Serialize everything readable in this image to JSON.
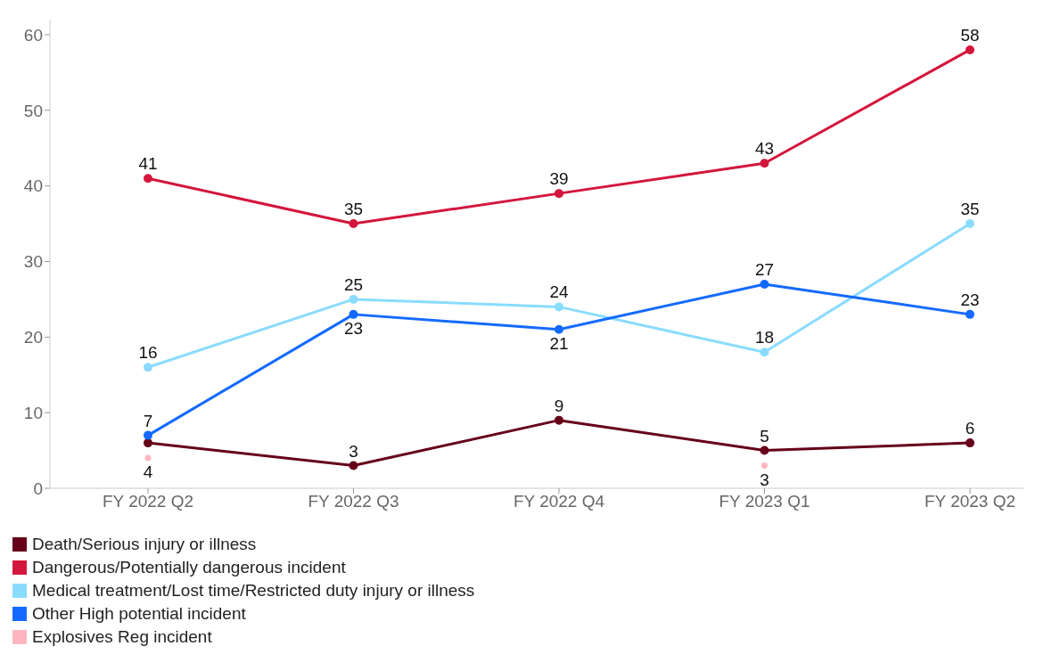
{
  "chart_data": {
    "type": "line",
    "categories": [
      "FY 2022 Q2",
      "FY 2022 Q3",
      "FY 2022 Q4",
      "FY 2023 Q1",
      "FY 2023 Q2"
    ],
    "ylim": [
      0,
      62
    ],
    "yticks": [
      0,
      10,
      20,
      30,
      40,
      50,
      60
    ],
    "grid": false,
    "legend": "bottom left",
    "marker": "circle",
    "line_style": "solid",
    "series": [
      {
        "name": "Death/Serious injury or illness",
        "color": "#660019",
        "values": [
          6,
          3,
          9,
          5,
          6
        ],
        "value_labels": [
          null,
          "3",
          "9",
          "5",
          "6"
        ]
      },
      {
        "name": "Dangerous/Potentially dangerous incident",
        "color": "#d4163c",
        "values": [
          41,
          35,
          39,
          43,
          58
        ],
        "value_labels": [
          "41",
          "35",
          "39",
          "43",
          "58"
        ]
      },
      {
        "name": "Medical treatment/Lost time/Restricted duty injury or illness",
        "color": "#8adcff",
        "values": [
          16,
          25,
          24,
          18,
          35
        ],
        "value_labels": [
          "16",
          "25",
          "24",
          "18",
          "35"
        ]
      },
      {
        "name": "Other High potential incident",
        "color": "#146aff",
        "values": [
          7,
          23,
          21,
          27,
          23
        ],
        "value_labels": [
          "7",
          "23",
          "21",
          "27",
          "23"
        ]
      },
      {
        "name": "Explosives Reg incident",
        "type": "scatter",
        "color": "#ffb6c1",
        "values": [
          4,
          null,
          null,
          3,
          null
        ],
        "value_labels": [
          "4",
          null,
          null,
          "3",
          null
        ]
      }
    ]
  }
}
